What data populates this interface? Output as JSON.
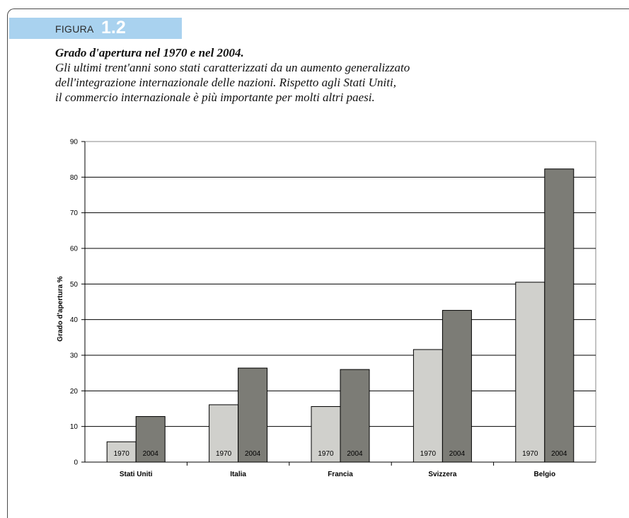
{
  "figure": {
    "label": "FIGURA",
    "number": "1.2",
    "title": "Grado d'apertura nel 1970 e nel 2004.",
    "caption_lines": [
      "Gli ultimi trent'anni sono stati caratterizzati da un aumento generalizzato",
      "dell'integrazione internazionale delle nazioni. Rispetto agli Stati Uniti,",
      "il commercio internazionale è più importante per molti altri paesi."
    ]
  },
  "chart_data": {
    "type": "bar",
    "categories": [
      "Stati Uniti",
      "Italia",
      "Francia",
      "Svizzera",
      "Belgio"
    ],
    "series": [
      {
        "name": "1970",
        "values": [
          5.7,
          16.1,
          15.6,
          31.6,
          50.5
        ],
        "color": "#d0d0cc"
      },
      {
        "name": "2004",
        "values": [
          12.8,
          26.4,
          26.0,
          42.6,
          82.3
        ],
        "color": "#7c7c76"
      }
    ],
    "title": "",
    "xlabel": "",
    "ylabel": "Grado d'apertura %",
    "ylim": [
      0,
      90
    ],
    "yticks": [
      0,
      10,
      20,
      30,
      40,
      50,
      60,
      70,
      80,
      90
    ],
    "grid": true,
    "legend": "none"
  }
}
